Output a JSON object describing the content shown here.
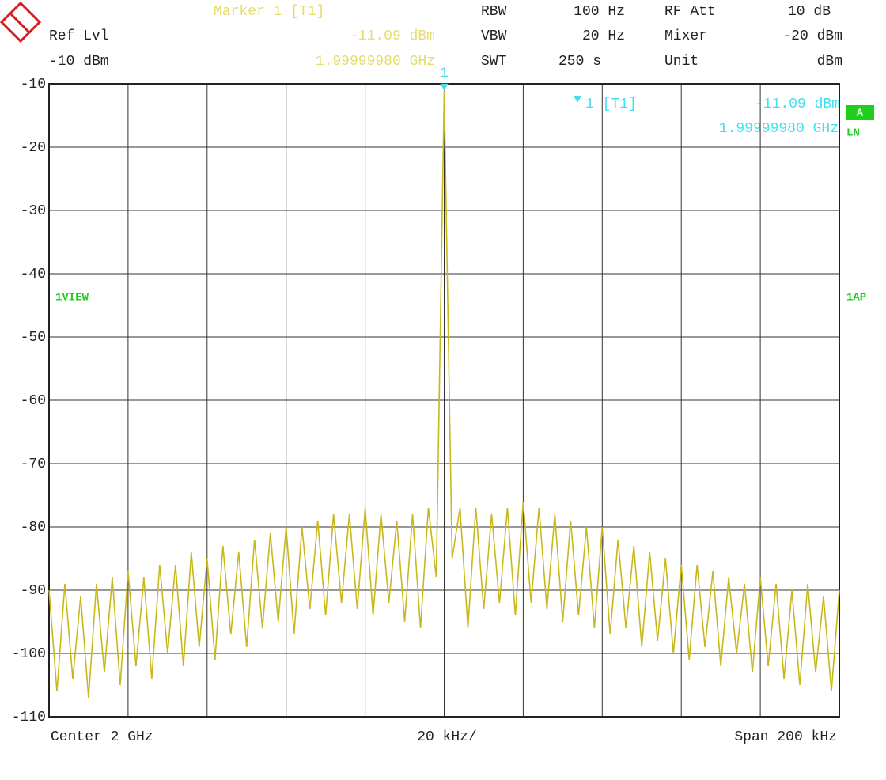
{
  "chart_data": {
    "type": "line",
    "header": {
      "marker_title": "Marker 1 [T1]",
      "marker_level": "-11.09 dBm",
      "marker_freq": "1.99999980 GHz",
      "ref_lvl_label": "Ref Lvl",
      "ref_lvl_value": "-10 dBm",
      "rbw_label": "RBW",
      "rbw_value": "100 Hz",
      "vbw_label": "VBW",
      "vbw_value": "20 Hz",
      "swt_label": "SWT",
      "swt_value": "250 s",
      "rf_att_label": "RF Att",
      "rf_att_value": "10 dB",
      "mixer_label": "Mixer",
      "mixer_value": "-20 dBm",
      "unit_label": "Unit",
      "unit_value": "dBm"
    },
    "marker_readout": {
      "name": "1 [T1]",
      "level": "-11.09 dBm",
      "freq": "1.99999980 GHz"
    },
    "marker_number": "1",
    "side_labels": {
      "trace_a": "A",
      "ln": "LN",
      "view": "1VIEW",
      "ap": "1AP"
    },
    "footer": {
      "center": "Center 2 GHz",
      "div": "20 kHz/",
      "span": "Span 200 kHz"
    },
    "ylim": [
      -110,
      -10
    ],
    "yticks": [
      -10,
      -20,
      -30,
      -40,
      -50,
      -60,
      -70,
      -80,
      -90,
      -100,
      -110
    ],
    "xlim": [
      -100,
      100
    ],
    "xgrid": [
      -100,
      -80,
      -60,
      -40,
      -20,
      0,
      20,
      40,
      60,
      80,
      100
    ],
    "grid": true,
    "x": [
      -100,
      -98,
      -96,
      -94,
      -92,
      -90,
      -88,
      -86,
      -84,
      -82,
      -80,
      -78,
      -76,
      -74,
      -72,
      -70,
      -68,
      -66,
      -64,
      -62,
      -60,
      -58,
      -56,
      -54,
      -52,
      -50,
      -48,
      -46,
      -44,
      -42,
      -40,
      -38,
      -36,
      -34,
      -32,
      -30,
      -28,
      -26,
      -24,
      -22,
      -20,
      -18,
      -16,
      -14,
      -12,
      -10,
      -8,
      -6,
      -4,
      -2,
      0,
      2,
      4,
      6,
      8,
      10,
      12,
      14,
      16,
      18,
      20,
      22,
      24,
      26,
      28,
      30,
      32,
      34,
      36,
      38,
      40,
      42,
      44,
      46,
      48,
      50,
      52,
      54,
      56,
      58,
      60,
      62,
      64,
      66,
      68,
      70,
      72,
      74,
      76,
      78,
      80,
      82,
      84,
      86,
      88,
      90,
      92,
      94,
      96,
      98,
      100
    ],
    "series": [
      {
        "color": "#c9b81c",
        "values": [
          -90,
          -106,
          -89,
          -104,
          -91,
          -107,
          -89,
          -103,
          -88,
          -105,
          -87,
          -102,
          -88,
          -104,
          -86,
          -100,
          -86,
          -102,
          -84,
          -99,
          -85,
          -101,
          -83,
          -97,
          -84,
          -99,
          -82,
          -96,
          -81,
          -95,
          -80,
          -97,
          -80,
          -93,
          -79,
          -94,
          -78,
          -92,
          -78,
          -93,
          -77,
          -94,
          -78,
          -92,
          -79,
          -95,
          -78,
          -96,
          -77,
          -88,
          -11.09,
          -85,
          -77,
          -96,
          -77,
          -93,
          -78,
          -92,
          -77,
          -94,
          -76,
          -92,
          -77,
          -93,
          -78,
          -95,
          -79,
          -94,
          -80,
          -96,
          -80,
          -97,
          -82,
          -96,
          -83,
          -99,
          -84,
          -98,
          -85,
          -100,
          -86,
          -101,
          -86,
          -99,
          -87,
          -102,
          -88,
          -100,
          -89,
          -103,
          -88,
          -102,
          -89,
          -104,
          -90,
          -105,
          -89,
          -103,
          -91,
          -106,
          -90
        ]
      }
    ],
    "marker_color": "#3fe0ee"
  }
}
